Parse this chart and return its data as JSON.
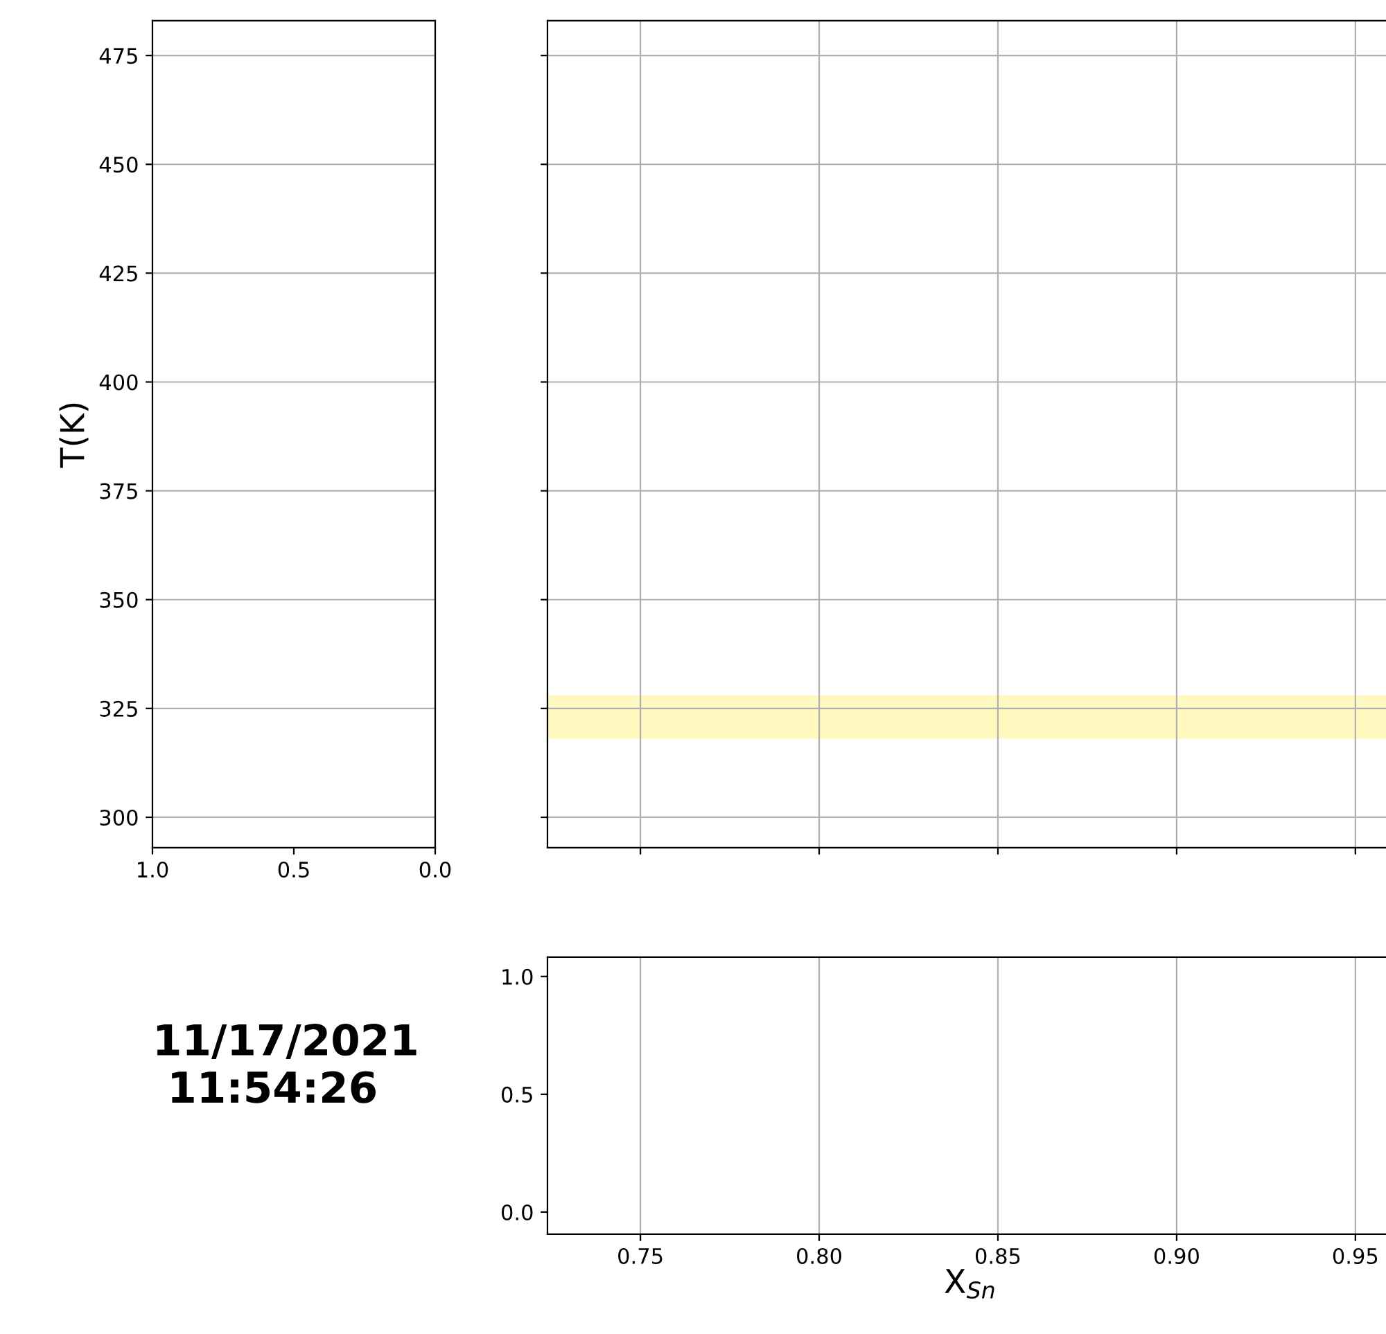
{
  "chart_data": [
    {
      "type": "line",
      "ylabel": "T(K)",
      "xlim": [
        1.0,
        0.0
      ],
      "xticks": [
        {
          "value": 1.0,
          "label": "1.0"
        },
        {
          "value": 0.5,
          "label": "0.5"
        },
        {
          "value": 0.0,
          "label": "0.0"
        }
      ],
      "ylim": [
        293,
        483
      ],
      "yticks": [
        300,
        325,
        350,
        375,
        400,
        425,
        450,
        475
      ],
      "grid": "y"
    },
    {
      "type": "line",
      "xlim": [
        0.724,
        0.9605
      ],
      "xticks": [
        0.75,
        0.8,
        0.85,
        0.9,
        0.95
      ],
      "ylim": [
        293,
        483
      ],
      "yticks": [
        300,
        325,
        350,
        375,
        400,
        425,
        450,
        475
      ],
      "grid": true,
      "tick_labels": false,
      "bands": [
        {
          "axis": "y",
          "from": 318,
          "to": 328,
          "color": "#fff7b0"
        }
      ]
    },
    {
      "type": "line",
      "xlabel": "X$_{Sn}$",
      "xlim": [
        0.724,
        0.9605
      ],
      "xticks": [
        0.75,
        {
          "value": 0.8,
          "label": "0.80"
        },
        0.85,
        {
          "value": 0.9,
          "label": "0.90"
        },
        0.95
      ],
      "ylim": [
        -0.094,
        1.082
      ],
      "yticks": [
        {
          "value": 0.0,
          "label": "0.0"
        },
        0.5,
        {
          "value": 1.0,
          "label": "1.0"
        }
      ],
      "grid": "x",
      "annotations": [
        "11/17/2021\n 11:54:26"
      ]
    }
  ]
}
